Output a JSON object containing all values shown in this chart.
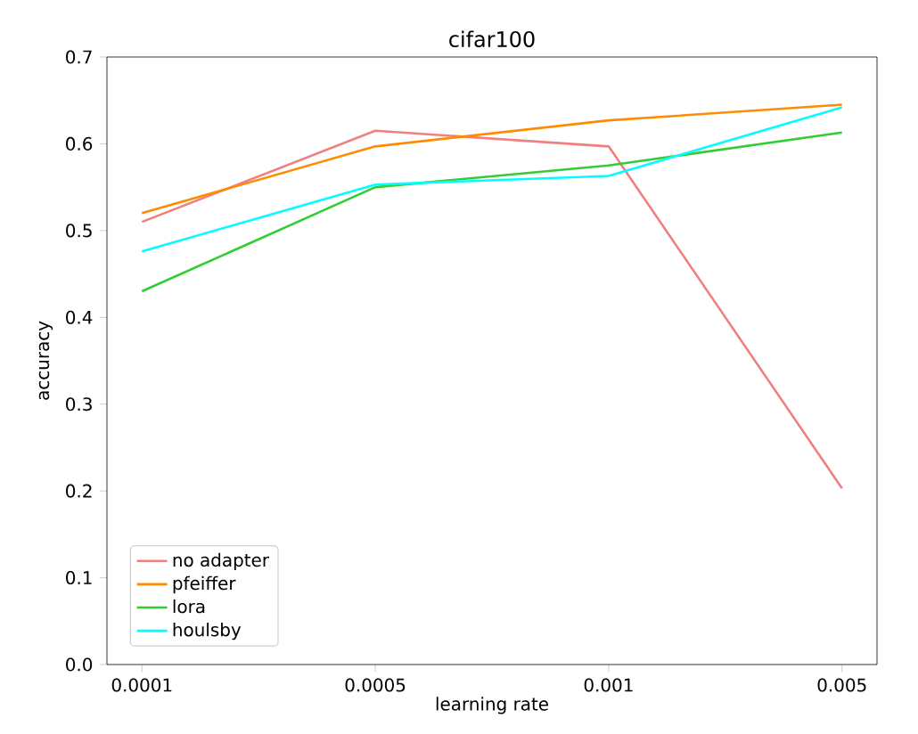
{
  "chart_data": {
    "type": "line",
    "title": "cifar100",
    "xlabel": "learning rate",
    "ylabel": "accuracy",
    "categories": [
      "0.0001",
      "0.0005",
      "0.001",
      "0.005"
    ],
    "series": [
      {
        "name": "no adapter",
        "color": "#f08080",
        "values": [
          0.51,
          0.615,
          0.597,
          0.203
        ]
      },
      {
        "name": "pfeiffer",
        "color": "#ff8c00",
        "values": [
          0.52,
          0.597,
          0.627,
          0.645
        ]
      },
      {
        "name": "lora",
        "color": "#32cd32",
        "values": [
          0.43,
          0.55,
          0.575,
          0.613
        ]
      },
      {
        "name": "houlsby",
        "color": "#00ffff",
        "values": [
          0.476,
          0.553,
          0.563,
          0.642
        ]
      }
    ],
    "ylim": [
      0,
      0.7
    ],
    "yticks": [
      {
        "value": 0,
        "label": "0.0"
      },
      {
        "value": 0.1,
        "label": "0.1"
      },
      {
        "value": 0.2,
        "label": "0.2"
      },
      {
        "value": 0.3,
        "label": "0.3"
      },
      {
        "value": 0.4,
        "label": "0.4"
      },
      {
        "value": 0.5,
        "label": "0.5"
      },
      {
        "value": 0.6,
        "label": "0.6"
      },
      {
        "value": 0.7,
        "label": "0.7"
      }
    ],
    "grid": false,
    "legend": "bottom left",
    "marker": "none",
    "line_style": "solid"
  }
}
